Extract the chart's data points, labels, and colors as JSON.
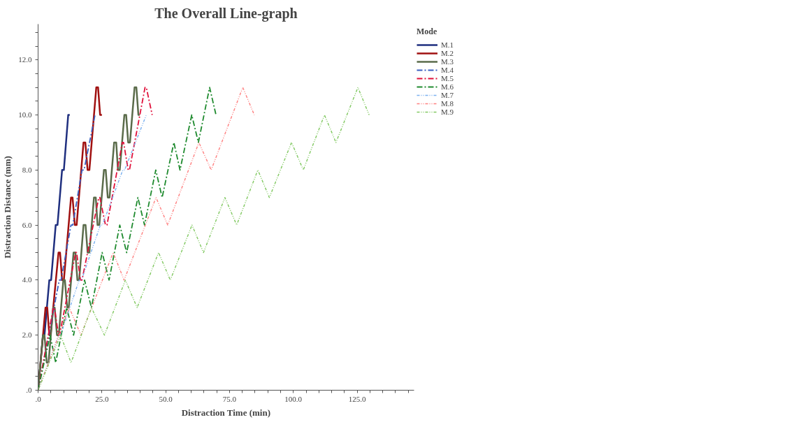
{
  "chart_data": {
    "type": "line",
    "title": "The Overall Line-graph",
    "xlabel": "Distraction Time (min)",
    "ylabel": "Distraction Distance (mm)",
    "legend_title": "Mode",
    "legend": "right",
    "grid": false,
    "xlim": [
      0,
      147.3
    ],
    "ylim": [
      0,
      13.3
    ],
    "xticks": [
      {
        "value": 0,
        "label": ".0"
      },
      {
        "value": 5,
        "label": null
      },
      {
        "value": 10,
        "label": null
      },
      {
        "value": 15,
        "label": null
      },
      {
        "value": 20,
        "label": null
      },
      {
        "value": 25,
        "label": "25.0"
      },
      {
        "value": 30,
        "label": null
      },
      {
        "value": 35,
        "label": null
      },
      {
        "value": 40,
        "label": null
      },
      {
        "value": 45,
        "label": null
      },
      {
        "value": 50,
        "label": "50.0"
      },
      {
        "value": 55,
        "label": null
      },
      {
        "value": 60,
        "label": null
      },
      {
        "value": 65,
        "label": null
      },
      {
        "value": 70,
        "label": null
      },
      {
        "value": 75,
        "label": "75.0"
      },
      {
        "value": 80,
        "label": null
      },
      {
        "value": 85,
        "label": null
      },
      {
        "value": 90,
        "label": null
      },
      {
        "value": 95,
        "label": null
      },
      {
        "value": 100,
        "label": "100.0"
      },
      {
        "value": 105,
        "label": null
      },
      {
        "value": 110,
        "label": null
      },
      {
        "value": 115,
        "label": null
      },
      {
        "value": 120,
        "label": null
      },
      {
        "value": 125,
        "label": "125.0"
      },
      {
        "value": 130,
        "label": null
      },
      {
        "value": 135,
        "label": null
      },
      {
        "value": 140,
        "label": null
      },
      {
        "value": 145,
        "label": null
      }
    ],
    "yticks": [
      {
        "value": 0,
        "label": ".0"
      },
      {
        "value": 0.5,
        "label": null
      },
      {
        "value": 1,
        "label": null
      },
      {
        "value": 1.5,
        "label": null
      },
      {
        "value": 2,
        "label": "2.0"
      },
      {
        "value": 2.5,
        "label": null
      },
      {
        "value": 3,
        "label": null
      },
      {
        "value": 3.5,
        "label": null
      },
      {
        "value": 4,
        "label": "4.0"
      },
      {
        "value": 4.5,
        "label": null
      },
      {
        "value": 5,
        "label": null
      },
      {
        "value": 5.5,
        "label": null
      },
      {
        "value": 6,
        "label": "6.0"
      },
      {
        "value": 6.5,
        "label": null
      },
      {
        "value": 7,
        "label": null
      },
      {
        "value": 7.5,
        "label": null
      },
      {
        "value": 8,
        "label": "8.0"
      },
      {
        "value": 8.5,
        "label": null
      },
      {
        "value": 9,
        "label": null
      },
      {
        "value": 9.5,
        "label": null
      },
      {
        "value": 10,
        "label": "10.0"
      },
      {
        "value": 10.5,
        "label": null
      },
      {
        "value": 11,
        "label": null
      },
      {
        "value": 11.5,
        "label": null
      },
      {
        "value": 12,
        "label": "12.0"
      },
      {
        "value": 12.5,
        "label": null
      },
      {
        "value": 13,
        "label": null
      }
    ],
    "series": [
      {
        "name": "M.1",
        "color": "#1f2f7f",
        "line_style": "solid",
        "x": [
          0,
          1.9,
          2.5,
          4.4,
          5.1,
          6.9,
          7.6,
          9.4,
          10.1,
          11.8,
          12.4
        ],
        "values": [
          0,
          2,
          2,
          4,
          4,
          6,
          6,
          8,
          8,
          10,
          10
        ]
      },
      {
        "name": "M.2",
        "color": "#a01010",
        "line_style": "solid",
        "x": [
          0,
          2.9,
          3.6,
          4.4,
          4.9,
          8.0,
          8.6,
          9.4,
          10.1,
          12.9,
          13.5,
          14.4,
          15.1,
          17.8,
          18.5,
          19.4,
          20.1,
          22.8,
          23.5,
          24.3,
          25.0
        ],
        "values": [
          0,
          3,
          3,
          2,
          2,
          5,
          5,
          4,
          4,
          7,
          7,
          6,
          6,
          9,
          9,
          8,
          8,
          11,
          11,
          10,
          10
        ]
      },
      {
        "name": "M.3",
        "color": "#5a6b4a",
        "line_style": "solid",
        "x": [
          0,
          1.9,
          2.5,
          3.4,
          4.1,
          5.9,
          6.5,
          7.4,
          8.1,
          9.9,
          10.5,
          11.4,
          12.0,
          13.9,
          14.6,
          15.4,
          16.1,
          17.8,
          18.6,
          19.4,
          20.1,
          21.9,
          22.6,
          23.3,
          24.0,
          25.8,
          26.5,
          27.3,
          28.0,
          29.8,
          30.6,
          31.3,
          32.0,
          33.8,
          34.5,
          35.3,
          36.0,
          37.8,
          38.5,
          39.3,
          39.8
        ],
        "values": [
          0,
          2,
          2,
          1,
          1,
          3,
          3,
          2,
          2,
          4,
          4,
          3,
          3,
          5,
          5,
          4,
          4,
          6,
          6,
          5,
          5,
          7,
          7,
          6,
          6,
          8,
          8,
          7,
          7,
          9,
          9,
          8,
          8,
          10,
          10,
          9,
          9,
          11,
          11,
          10,
          10
        ]
      },
      {
        "name": "M.4",
        "color": "#3a5fc0",
        "line_style": "dashed",
        "x": [
          0,
          8.3,
          9.0,
          12.9,
          13.6,
          17.2,
          18.0,
          22.3
        ],
        "values": [
          0,
          4,
          4,
          6,
          6,
          8,
          8,
          10
        ]
      },
      {
        "name": "M.5",
        "color": "#e0103a",
        "line_style": "dashed",
        "x": [
          0,
          6.0,
          6.4,
          8.0,
          8.4,
          14.7,
          15.1,
          16.6,
          17.2,
          23.8,
          24.2,
          26.4,
          27.0,
          33.0,
          33.5,
          35.3,
          35.8,
          41.9,
          42.4,
          44.7
        ],
        "values": [
          0,
          3,
          3,
          2,
          2,
          5,
          5,
          4,
          4,
          7,
          7,
          6,
          6,
          9,
          9,
          8,
          8,
          11,
          11,
          10
        ]
      },
      {
        "name": "M.6",
        "color": "#1e8a2e",
        "line_style": "dashed",
        "x": [
          0,
          4.7,
          6.9,
          11.2,
          13.9,
          18.2,
          20.9,
          25.1,
          27.8,
          32.0,
          34.7,
          39.1,
          41.7,
          46.1,
          48.6,
          53.2,
          55.6,
          60.2,
          62.8,
          67.2,
          69.7
        ],
        "values": [
          0,
          2,
          1,
          3,
          2,
          4,
          3,
          5,
          4,
          6,
          5,
          7,
          6,
          8,
          7,
          9,
          8,
          10,
          9,
          11,
          10
        ]
      },
      {
        "name": "M.7",
        "color": "#7ab0f0",
        "line_style": "dotted",
        "x": [
          0,
          8.1,
          8.8,
          16.1,
          17.0,
          24.4,
          25.2,
          33.2,
          33.9,
          42.4
        ],
        "values": [
          0,
          2,
          2,
          4,
          4,
          6,
          6,
          8,
          8,
          10
        ]
      },
      {
        "name": "M.8",
        "color": "#ff8080",
        "line_style": "dotted",
        "x": [
          0,
          12.2,
          16.8,
          29.4,
          33.7,
          46.2,
          50.8,
          63.0,
          67.8,
          80.2,
          84.7
        ],
        "values": [
          0,
          3,
          2,
          5,
          4,
          7,
          6,
          9,
          8,
          11,
          10
        ]
      },
      {
        "name": "M.9",
        "color": "#80c860",
        "line_style": "dotted",
        "x": [
          0,
          8.8,
          12.9,
          20.9,
          26.0,
          34.2,
          38.8,
          47.2,
          51.8,
          60.3,
          64.8,
          73.2,
          77.8,
          86.1,
          90.6,
          99.3,
          103.9,
          112.2,
          116.7,
          125.3,
          129.7
        ],
        "values": [
          0,
          2,
          1,
          3,
          2,
          4,
          3,
          5,
          4,
          6,
          5,
          7,
          6,
          8,
          7,
          9,
          8,
          10,
          9,
          11,
          10
        ]
      }
    ]
  }
}
